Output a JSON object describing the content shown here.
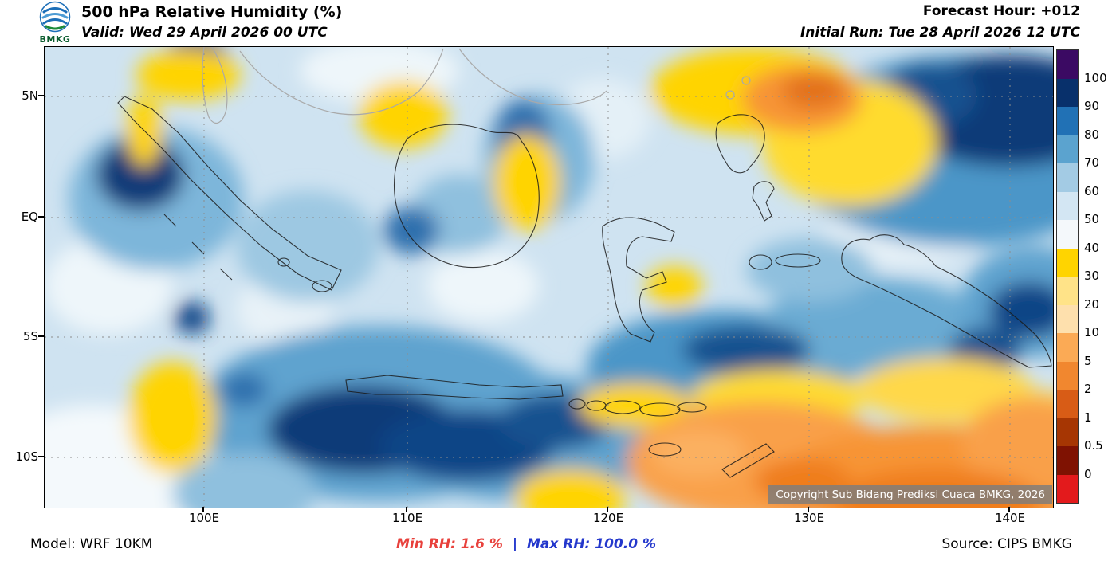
{
  "header": {
    "logo_text": "BMKG",
    "title": "500 hPa Relative Humidity (%)",
    "valid_line": "Valid: Wed 29 April 2026 00 UTC",
    "forecast_hour": "Forecast Hour: +012",
    "initial_run": "Initial Run: Tue 28 April 2026 12 UTC"
  },
  "map": {
    "lat_labels": [
      "5N",
      "EQ",
      "5S",
      "10S"
    ],
    "lon_labels": [
      "100E",
      "110E",
      "120E",
      "130E",
      "140E"
    ],
    "copyright": "Copyright Sub Bidang Prediksi Cuaca BMKG, 2026"
  },
  "colorbar": {
    "labels": [
      "100",
      "90",
      "80",
      "70",
      "60",
      "50",
      "40",
      "30",
      "20",
      "10",
      "5",
      "2",
      "1",
      "0.5",
      "0"
    ],
    "colors_low_to_high": [
      "#e31a1c",
      "#7f1202",
      "#a63603",
      "#d85c16",
      "#f1872f",
      "#fbaa55",
      "#fee0ad",
      "#ffe388",
      "#ffd400",
      "#f4f8fb",
      "#d3e6f3",
      "#a3cbe4",
      "#5ba3cf",
      "#2171b5",
      "#08306b",
      "#3b0a63"
    ]
  },
  "footer": {
    "model": "Model: WRF 10KM",
    "min_rh_label": "Min RH:",
    "min_rh_value": "1.6 %",
    "separator": "|",
    "max_rh_label": "Max RH:",
    "max_rh_value": "100.0 %",
    "source": "Source: CIPS BMKG"
  },
  "chart_data": {
    "type": "heatmap",
    "title": "500 hPa Relative Humidity (%)",
    "units": "%",
    "model": "WRF 10KM",
    "source": "CIPS BMKG",
    "valid_time": "Wed 29 April 2026 00 UTC",
    "initial_run": "Tue 28 April 2026 12 UTC",
    "forecast_hour": "+012",
    "x_ticks": [
      "100E",
      "110E",
      "120E",
      "130E",
      "140E"
    ],
    "y_ticks": [
      "5N",
      "EQ",
      "5S",
      "10S"
    ],
    "levels": [
      0,
      0.5,
      1,
      2,
      5,
      10,
      20,
      30,
      40,
      50,
      60,
      70,
      80,
      90,
      100
    ],
    "palette_low_to_high": [
      "#e31a1c",
      "#7f1202",
      "#a63603",
      "#d85c16",
      "#f1872f",
      "#fbaa55",
      "#fee0ad",
      "#ffe388",
      "#ffd400",
      "#f4f8fb",
      "#d3e6f3",
      "#a3cbe4",
      "#5ba3cf",
      "#2171b5",
      "#08306b",
      "#3b0a63"
    ],
    "min_value": 1.6,
    "max_value": 100.0,
    "legend_position": "right",
    "grid": true,
    "features": [
      "High RH (80-100%) band over southern Sumatra, the Java Sea and Java",
      "Very high RH (90-100%) in the far northeast (Pacific, near 135-142E north of 5N)",
      "Dry air (10-40%) over the Arafura/Timor Sea region in the southeast",
      "Dry patch (5-40%) northeast of the Philippines around 125-135E, 3-8N",
      "Scattered 30-40% patches over northern Sumatra, the Malay Peninsula, central Borneo and west of southern Sumatra"
    ]
  }
}
